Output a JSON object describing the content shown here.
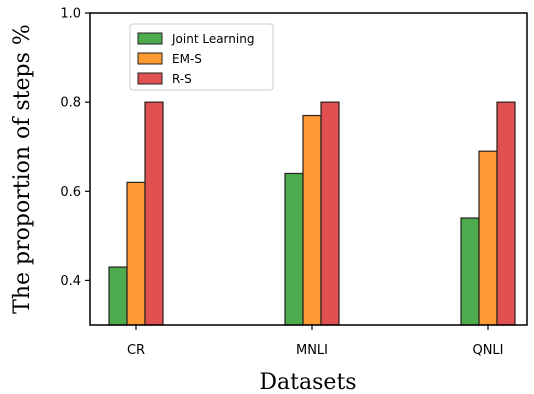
{
  "chart_data": {
    "type": "bar",
    "categories": [
      "CR",
      "MNLI",
      "QNLI"
    ],
    "series": [
      {
        "name": "Joint Learning",
        "values": [
          0.43,
          0.64,
          0.54
        ],
        "color": "#4daa4d"
      },
      {
        "name": "EM-S",
        "values": [
          0.62,
          0.77,
          0.69
        ],
        "color": "#ff9933"
      },
      {
        "name": "R-S",
        "values": [
          0.8,
          0.8,
          0.8
        ],
        "color": "#e05050"
      }
    ],
    "xlabel": "Datasets",
    "ylabel": "The proportion of steps %",
    "ylim": [
      0.3,
      1.0
    ],
    "yticks": [
      "0.4",
      "0.6",
      "0.8",
      "1.0"
    ],
    "ytick_values": [
      0.4,
      0.6,
      0.8,
      1.0
    ],
    "grid": false,
    "legend_position": "top-left"
  }
}
